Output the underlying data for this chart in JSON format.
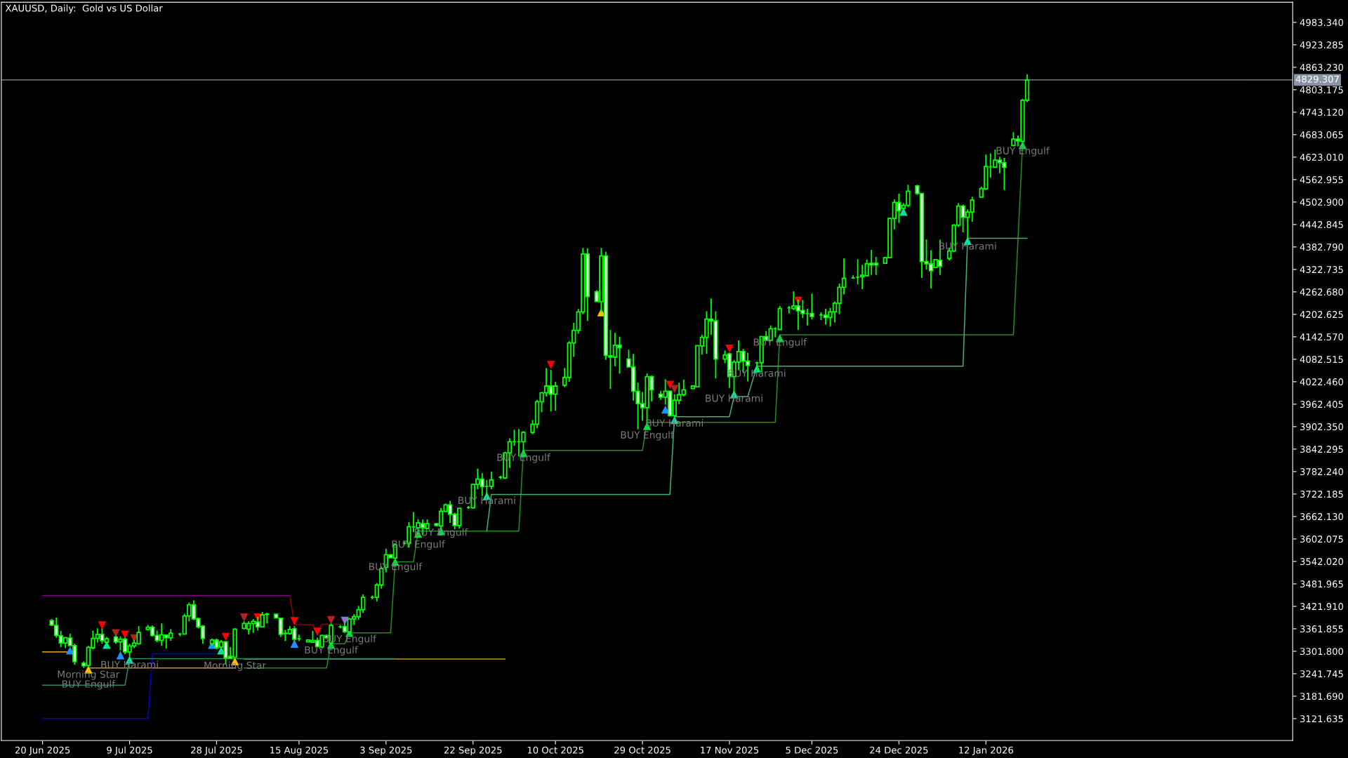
{
  "chart_data": {
    "type": "candlestick",
    "title": "XAUUSD, Daily:  Gold vs US Dollar",
    "x": [
      "2025-06-22",
      "2025-06-23",
      "2025-06-24",
      "2025-06-25",
      "2025-06-26",
      "2025-06-27",
      "2025-06-29",
      "2025-06-30",
      "2025-07-01",
      "2025-07-02",
      "2025-07-03",
      "2025-07-04",
      "2025-07-06",
      "2025-07-07",
      "2025-07-08",
      "2025-07-09",
      "2025-07-10",
      "2025-07-11",
      "2025-07-13",
      "2025-07-14",
      "2025-07-15",
      "2025-07-16",
      "2025-07-17",
      "2025-07-18",
      "2025-07-20",
      "2025-07-21",
      "2025-07-22",
      "2025-07-23",
      "2025-07-24",
      "2025-07-25",
      "2025-07-27",
      "2025-07-28",
      "2025-07-29",
      "2025-07-30",
      "2025-07-31",
      "2025-08-01",
      "2025-08-03",
      "2025-08-04",
      "2025-08-05",
      "2025-08-06",
      "2025-08-07",
      "2025-08-08",
      "2025-08-10",
      "2025-08-11",
      "2025-08-12",
      "2025-08-13",
      "2025-08-14",
      "2025-08-15",
      "2025-08-17",
      "2025-08-18",
      "2025-08-19",
      "2025-08-20",
      "2025-08-21",
      "2025-08-22",
      "2025-08-24",
      "2025-08-25",
      "2025-08-26",
      "2025-08-27",
      "2025-08-28",
      "2025-08-29",
      "2025-08-31",
      "2025-09-01",
      "2025-09-02",
      "2025-09-03",
      "2025-09-04",
      "2025-09-05",
      "2025-09-07",
      "2025-09-08",
      "2025-09-09",
      "2025-09-10",
      "2025-09-11",
      "2025-09-12",
      "2025-09-14",
      "2025-09-15",
      "2025-09-16",
      "2025-09-17",
      "2025-09-18",
      "2025-09-19",
      "2025-09-21",
      "2025-09-22",
      "2025-09-23",
      "2025-09-24",
      "2025-09-25",
      "2025-09-26",
      "2025-09-28",
      "2025-09-29",
      "2025-09-30",
      "2025-10-01",
      "2025-10-02",
      "2025-10-03",
      "2025-10-05",
      "2025-10-06",
      "2025-10-07",
      "2025-10-08",
      "2025-10-09",
      "2025-10-10",
      "2025-10-12",
      "2025-10-13",
      "2025-10-14",
      "2025-10-15",
      "2025-10-16",
      "2025-10-17",
      "2025-10-19",
      "2025-10-20",
      "2025-10-21",
      "2025-10-22",
      "2025-10-23",
      "2025-10-24",
      "2025-10-26",
      "2025-10-27",
      "2025-10-28",
      "2025-10-29",
      "2025-10-30",
      "2025-10-31",
      "2025-11-02",
      "2025-11-03",
      "2025-11-04",
      "2025-11-05",
      "2025-11-06",
      "2025-11-07",
      "2025-11-09",
      "2025-11-10",
      "2025-11-11",
      "2025-11-12",
      "2025-11-13",
      "2025-11-14",
      "2025-11-16",
      "2025-11-17",
      "2025-11-18",
      "2025-11-19",
      "2025-11-20",
      "2025-11-21",
      "2025-11-23",
      "2025-11-24",
      "2025-11-25",
      "2025-11-26",
      "2025-11-27",
      "2025-11-28",
      "2025-11-30",
      "2025-12-01",
      "2025-12-02",
      "2025-12-03",
      "2025-12-04",
      "2025-12-05",
      "2025-12-07",
      "2025-12-08",
      "2025-12-09",
      "2025-12-10",
      "2025-12-11",
      "2025-12-12",
      "2025-12-14",
      "2025-12-15",
      "2025-12-16",
      "2025-12-17",
      "2025-12-18",
      "2025-12-19",
      "2025-12-21",
      "2025-12-22",
      "2025-12-23",
      "2025-12-24",
      "2025-12-25",
      "2025-12-26",
      "2025-12-28",
      "2025-12-29",
      "2025-12-30",
      "2025-12-31",
      "2026-01-01",
      "2026-01-02",
      "2026-01-04",
      "2026-01-05",
      "2026-01-06",
      "2026-01-07",
      "2026-01-08",
      "2026-01-09",
      "2026-01-11",
      "2026-01-12",
      "2026-01-13",
      "2026-01-14",
      "2026-01-15",
      "2026-01-16",
      "2026-01-18",
      "2026-01-19",
      "2026-01-20",
      "2026-01-21"
    ],
    "ohlc": [
      [
        3384,
        3388,
        3369,
        3372
      ],
      [
        3371,
        3392,
        3338,
        3344
      ],
      [
        3343,
        3356,
        3313,
        3324
      ],
      [
        3324,
        3340,
        3310,
        3338
      ],
      [
        3337,
        3349,
        3316,
        3317
      ],
      [
        3317,
        3322,
        3266,
        3274
      ],
      [
        3270,
        3275,
        3257,
        3263
      ],
      [
        3264,
        3316,
        3258,
        3312
      ],
      [
        3311,
        3357,
        3307,
        3336
      ],
      [
        3336,
        3363,
        3325,
        3347
      ],
      [
        3347,
        3363,
        3322,
        3330
      ],
      [
        3326,
        3340,
        3316,
        3335
      ],
      [
        3340,
        3344,
        3322,
        3327
      ],
      [
        3327,
        3342,
        3304,
        3334
      ],
      [
        3334,
        3338,
        3294,
        3300
      ],
      [
        3300,
        3322,
        3288,
        3316
      ],
      [
        3316,
        3332,
        3310,
        3324
      ],
      [
        3322,
        3369,
        3319,
        3352
      ],
      [
        3360,
        3372,
        3357,
        3366
      ],
      [
        3366,
        3371,
        3341,
        3344
      ],
      [
        3344,
        3357,
        3326,
        3331
      ],
      [
        3331,
        3376,
        3316,
        3346
      ],
      [
        3345,
        3347,
        3309,
        3338
      ],
      [
        3338,
        3361,
        3330,
        3350
      ],
      [
        3348,
        3351,
        3342,
        3348
      ],
      [
        3348,
        3402,
        3346,
        3396
      ],
      [
        3396,
        3432,
        3382,
        3426
      ],
      [
        3426,
        3438,
        3385,
        3388
      ],
      [
        3389,
        3392,
        3363,
        3367
      ],
      [
        3369,
        3372,
        3322,
        3336
      ],
      [
        3322,
        3336,
        3316,
        3332
      ],
      [
        3332,
        3336,
        3307,
        3311
      ],
      [
        3313,
        3332,
        3310,
        3327
      ],
      [
        3327,
        3329,
        3266,
        3284
      ],
      [
        3288,
        3313,
        3282,
        3283
      ],
      [
        3286,
        3363,
        3285,
        3361
      ],
      [
        3363,
        3382,
        3360,
        3376
      ],
      [
        3361,
        3382,
        3347,
        3376
      ],
      [
        3376,
        3388,
        3351,
        3382
      ],
      [
        3380,
        3394,
        3357,
        3367
      ],
      [
        3367,
        3407,
        3366,
        3399
      ],
      [
        3401,
        3405,
        3376,
        3400
      ],
      [
        3401,
        3403,
        3390,
        3391
      ],
      [
        3390,
        3391,
        3340,
        3347
      ],
      [
        3350,
        3359,
        3329,
        3349
      ],
      [
        3349,
        3369,
        3346,
        3360
      ],
      [
        3362,
        3369,
        3329,
        3334
      ],
      [
        3335,
        3346,
        3329,
        3335
      ],
      [
        3327,
        3334,
        3326,
        3332
      ],
      [
        3326,
        3356,
        3324,
        3331
      ],
      [
        3331,
        3338,
        3313,
        3314
      ],
      [
        3313,
        3346,
        3311,
        3344
      ],
      [
        3344,
        3346,
        3336,
        3338
      ],
      [
        3324,
        3376,
        3322,
        3371
      ],
      [
        3367,
        3372,
        3363,
        3367
      ],
      [
        3368,
        3376,
        3351,
        3354
      ],
      [
        3354,
        3391,
        3349,
        3388
      ],
      [
        3388,
        3401,
        3372,
        3394
      ],
      [
        3394,
        3423,
        3386,
        3413
      ],
      [
        3413,
        3454,
        3404,
        3446
      ],
      [
        3446,
        3451,
        3441,
        3446
      ],
      [
        3446,
        3484,
        3435,
        3479
      ],
      [
        3479,
        3528,
        3469,
        3523
      ],
      [
        3526,
        3576,
        3513,
        3560
      ],
      [
        3560,
        3561,
        3551,
        3552
      ],
      [
        3551,
        3590,
        3541,
        3586
      ],
      [
        3591,
        3597,
        3586,
        3591
      ],
      [
        3590,
        3647,
        3579,
        3635
      ],
      [
        3634,
        3674,
        3620,
        3634
      ],
      [
        3632,
        3655,
        3613,
        3645
      ],
      [
        3643,
        3654,
        3613,
        3632
      ],
      [
        3630,
        3654,
        3628,
        3643
      ],
      [
        3643,
        3644,
        3637,
        3638
      ],
      [
        3637,
        3685,
        3628,
        3676
      ],
      [
        3676,
        3697,
        3674,
        3693
      ],
      [
        3693,
        3704,
        3645,
        3668
      ],
      [
        3668,
        3672,
        3628,
        3638
      ],
      [
        3638,
        3685,
        3630,
        3684
      ],
      [
        3686,
        3690,
        3682,
        3686
      ],
      [
        3685,
        3749,
        3683,
        3748
      ],
      [
        3748,
        3790,
        3735,
        3762
      ],
      [
        3762,
        3778,
        3717,
        3742
      ],
      [
        3743,
        3760,
        3717,
        3743
      ],
      [
        3743,
        3782,
        3735,
        3760
      ],
      [
        3767,
        3771,
        3762,
        3767
      ],
      [
        3765,
        3835,
        3762,
        3832
      ],
      [
        3832,
        3871,
        3792,
        3862
      ],
      [
        3862,
        3894,
        3851,
        3862
      ],
      [
        3862,
        3896,
        3823,
        3862
      ],
      [
        3862,
        3891,
        3835,
        3887
      ],
      [
        3887,
        3920,
        3882,
        3909
      ],
      [
        3909,
        3974,
        3898,
        3969
      ],
      [
        3969,
        3995,
        3941,
        3993
      ],
      [
        3993,
        4059,
        3983,
        4011
      ],
      [
        4011,
        4054,
        3943,
        3989
      ],
      [
        3989,
        4022,
        3945,
        4011
      ],
      [
        4013,
        4059,
        4008,
        4034
      ],
      [
        4034,
        4131,
        4022,
        4126
      ],
      [
        4126,
        4180,
        4089,
        4160
      ],
      [
        4160,
        4217,
        4151,
        4209
      ],
      [
        4209,
        4380,
        4203,
        4364
      ],
      [
        4364,
        4379,
        4185,
        4250
      ],
      [
        4263,
        4267,
        4236,
        4237
      ],
      [
        4237,
        4380,
        4208,
        4359
      ],
      [
        4359,
        4370,
        4081,
        4093
      ],
      [
        4092,
        4161,
        4003,
        4088
      ],
      [
        4088,
        4153,
        4064,
        4120
      ],
      [
        4120,
        4143,
        4044,
        4113
      ],
      [
        4083,
        4108,
        4061,
        4062
      ],
      [
        4062,
        4097,
        3972,
        3997
      ],
      [
        3997,
        4020,
        3895,
        3964
      ],
      [
        3964,
        3995,
        3918,
        3953
      ],
      [
        3953,
        4045,
        3914,
        4036
      ],
      [
        4036,
        4039,
        3970,
        4001
      ],
      [
        3989,
        3998,
        3974,
        3981
      ],
      [
        3981,
        4029,
        3961,
        3997
      ],
      [
        3997,
        3999,
        3929,
        3932
      ],
      [
        3932,
        3989,
        3929,
        3973
      ],
      [
        3973,
        4020,
        3962,
        3988
      ],
      [
        3988,
        4028,
        3983,
        4001
      ],
      [
        4004,
        4013,
        4003,
        4011
      ],
      [
        4009,
        4120,
        4008,
        4119
      ],
      [
        4118,
        4148,
        4095,
        4141
      ],
      [
        4141,
        4211,
        4097,
        4190
      ],
      [
        4190,
        4245,
        4148,
        4185
      ],
      [
        4185,
        4211,
        4031,
        4083
      ],
      [
        4083,
        4106,
        4072,
        4094
      ],
      [
        4097,
        4100,
        4006,
        4036
      ],
      [
        4036,
        4081,
        3993,
        4075
      ],
      [
        4075,
        4133,
        4053,
        4103
      ],
      [
        4103,
        4110,
        4046,
        4078
      ],
      [
        4078,
        4100,
        4023,
        4066
      ],
      [
        4073,
        4076,
        4048,
        4073
      ],
      [
        4073,
        4145,
        4048,
        4143
      ],
      [
        4143,
        4158,
        4131,
        4133
      ],
      [
        4133,
        4173,
        4130,
        4164
      ],
      [
        4164,
        4168,
        4141,
        4164
      ],
      [
        4162,
        4225,
        4161,
        4218
      ],
      [
        4220,
        4225,
        4205,
        4220
      ],
      [
        4218,
        4264,
        4214,
        4225
      ],
      [
        4225,
        4242,
        4161,
        4212
      ],
      [
        4213,
        4241,
        4193,
        4205
      ],
      [
        4205,
        4218,
        4173,
        4205
      ],
      [
        4205,
        4258,
        4189,
        4197
      ],
      [
        4201,
        4208,
        4187,
        4201
      ],
      [
        4200,
        4218,
        4175,
        4194
      ],
      [
        4194,
        4220,
        4170,
        4209
      ],
      [
        4209,
        4237,
        4181,
        4232
      ],
      [
        4232,
        4285,
        4203,
        4275
      ],
      [
        4275,
        4352,
        4256,
        4299
      ],
      [
        4300,
        4307,
        4299,
        4300
      ],
      [
        4302,
        4350,
        4283,
        4302
      ],
      [
        4303,
        4335,
        4270,
        4307
      ],
      [
        4306,
        4349,
        4304,
        4338
      ],
      [
        4339,
        4375,
        4308,
        4335
      ],
      [
        4339,
        4356,
        4308,
        4335
      ],
      [
        4339,
        4356,
        4338,
        4354
      ],
      [
        4354,
        4461,
        4353,
        4459
      ],
      [
        4459,
        4510,
        4430,
        4502
      ],
      [
        4502,
        4525,
        4447,
        4480
      ],
      [
        4486,
        4500,
        4483,
        4494
      ],
      [
        4494,
        4549,
        4489,
        4532
      ],
      [
        4546,
        4549,
        4522,
        4526
      ],
      [
        4526,
        4526,
        4300,
        4344
      ],
      [
        4344,
        4403,
        4322,
        4338
      ],
      [
        4338,
        4374,
        4272,
        4319
      ],
      [
        4328,
        4350,
        4327,
        4349
      ],
      [
        4347,
        4402,
        4308,
        4331
      ],
      [
        4352,
        4381,
        4347,
        4372
      ],
      [
        4372,
        4444,
        4369,
        4441
      ],
      [
        4441,
        4500,
        4436,
        4492
      ],
      [
        4492,
        4496,
        4422,
        4462
      ],
      [
        4462,
        4483,
        4405,
        4476
      ],
      [
        4476,
        4517,
        4450,
        4508
      ],
      [
        4516,
        4544,
        4514,
        4539
      ],
      [
        4538,
        4630,
        4535,
        4598
      ],
      [
        4597,
        4633,
        4568,
        4597
      ],
      [
        4596,
        4643,
        4594,
        4615
      ],
      [
        4615,
        4624,
        4580,
        4608
      ],
      [
        4608,
        4621,
        4535,
        4596
      ],
      [
        4654,
        4690,
        4652,
        4671
      ],
      [
        4671,
        4681,
        4652,
        4666
      ],
      [
        4665,
        4779,
        4663,
        4775
      ],
      [
        4775,
        4844,
        4770,
        4829
      ]
    ],
    "xlim": [
      "2025-06-11",
      "2026-03-20"
    ],
    "ylim": [
      3063,
      5037
    ],
    "yticks": [
      {
        "value": 3121.635,
        "label": "3121.635"
      },
      {
        "value": 3181.69,
        "label": "3181.690"
      },
      {
        "value": 3241.745,
        "label": "3241.745"
      },
      {
        "value": 3301.8,
        "label": "3301.800"
      },
      {
        "value": 3361.855,
        "label": "3361.855"
      },
      {
        "value": 3421.91,
        "label": "3421.910"
      },
      {
        "value": 3481.965,
        "label": "3481.965"
      },
      {
        "value": 3542.02,
        "label": "3542.020"
      },
      {
        "value": 3602.075,
        "label": "3602.075"
      },
      {
        "value": 3662.13,
        "label": "3662.130"
      },
      {
        "value": 3722.185,
        "label": "3722.185"
      },
      {
        "value": 3782.24,
        "label": "3782.240"
      },
      {
        "value": 3842.295,
        "label": "3842.295"
      },
      {
        "value": 3902.35,
        "label": "3902.350"
      },
      {
        "value": 3962.405,
        "label": "3962.405"
      },
      {
        "value": 4022.46,
        "label": "4022.460"
      },
      {
        "value": 4082.515,
        "label": "4082.515"
      },
      {
        "value": 4142.57,
        "label": "4142.570"
      },
      {
        "value": 4202.625,
        "label": "4202.625"
      },
      {
        "value": 4262.68,
        "label": "4262.680"
      },
      {
        "value": 4322.735,
        "label": "4322.735"
      },
      {
        "value": 4382.79,
        "label": "4382.790"
      },
      {
        "value": 4442.845,
        "label": "4442.845"
      },
      {
        "value": 4502.9,
        "label": "4502.900"
      },
      {
        "value": 4562.955,
        "label": "4562.955"
      },
      {
        "value": 4623.01,
        "label": "4623.010"
      },
      {
        "value": 4683.065,
        "label": "4683.065"
      },
      {
        "value": 4743.12,
        "label": "4743.120"
      },
      {
        "value": 4803.175,
        "label": "4803.175"
      },
      {
        "value": 4863.23,
        "label": "4863.230"
      },
      {
        "value": 4923.285,
        "label": "4923.285"
      },
      {
        "value": 4983.34,
        "label": "4983.340"
      }
    ],
    "xticks": [
      {
        "value": "2025-06-20",
        "label": "20 Jun 2025"
      },
      {
        "value": "2025-07-09",
        "label": "9 Jul 2025"
      },
      {
        "value": "2025-07-28",
        "label": "28 Jul 2025"
      },
      {
        "value": "2025-08-15",
        "label": "15 Aug 2025"
      },
      {
        "value": "2025-09-03",
        "label": "3 Sep 2025"
      },
      {
        "value": "2025-09-22",
        "label": "22 Sep 2025"
      },
      {
        "value": "2025-10-10",
        "label": "10 Oct 2025"
      },
      {
        "value": "2025-10-29",
        "label": "29 Oct 2025"
      },
      {
        "value": "2025-11-17",
        "label": "17 Nov 2025"
      },
      {
        "value": "2025-12-05",
        "label": "5 Dec 2025"
      },
      {
        "value": "2025-12-24",
        "label": "24 Dec 2025"
      },
      {
        "value": "2026-01-12",
        "label": "12 Jan 2026"
      }
    ],
    "ref_lines": [
      {
        "axis": "y",
        "value": 4829.307,
        "label": "4829.307",
        "color": "#8a94a6"
      }
    ],
    "series": [
      {
        "type": "line",
        "color": "#8b008b",
        "x": [
          "2025-06-20",
          "2025-08-13"
        ],
        "values": [
          3451,
          3451
        ]
      },
      {
        "type": "line",
        "color": "#8b0000",
        "x": [
          "2025-08-13",
          "2025-08-14",
          "2025-08-18",
          "2025-08-19",
          "2025-08-20",
          "2025-08-25"
        ],
        "values": [
          3451,
          3373,
          3373,
          3354,
          3374,
          3374
        ]
      },
      {
        "type": "line",
        "color": "#c8961e",
        "x": [
          "2025-06-20",
          "2025-06-26"
        ],
        "values": [
          3300,
          3300
        ]
      },
      {
        "type": "line",
        "color": "#c8961e",
        "x": [
          "2025-06-30",
          "2025-08-01"
        ],
        "values": [
          3257,
          3257
        ]
      },
      {
        "type": "line",
        "color": "#c8961e",
        "x": [
          "2025-08-03",
          "2025-09-29"
        ],
        "values": [
          3281,
          3281
        ]
      },
      {
        "type": "line",
        "color": "#0000cd",
        "x": [
          "2025-06-20",
          "2025-07-13",
          "2025-07-14",
          "2025-07-28"
        ],
        "values": [
          3122,
          3122,
          3295,
          3295
        ]
      },
      {
        "type": "line",
        "color": "#2e8b57",
        "x": [
          "2025-06-20",
          "2025-07-08",
          "2025-07-09",
          "2025-09-05"
        ],
        "values": [
          3211,
          3211,
          3282,
          3282
        ]
      },
      {
        "type": "line",
        "color": "#228b22",
        "x": [
          "2025-08-03",
          "2025-08-21",
          "2025-08-22",
          "2025-08-25",
          "2025-08-26",
          "2025-09-04",
          "2025-09-05",
          "2025-09-09",
          "2025-09-10",
          "2025-10-02",
          "2025-10-03",
          "2025-10-29",
          "2025-10-30",
          "2025-11-27",
          "2025-11-28",
          "2026-01-18",
          "2026-01-20"
        ],
        "values": [
          3257,
          3257,
          3322,
          3322,
          3351,
          3351,
          3541,
          3541,
          3623,
          3623,
          3839,
          3839,
          3914,
          3914,
          4148,
          4148,
          4656
        ]
      },
      {
        "type": "line",
        "color": "#3cb371",
        "x": [
          "2025-09-25",
          "2025-09-26",
          "2025-11-04",
          "2025-11-05",
          "2025-11-17",
          "2025-11-18",
          "2025-11-21",
          "2025-11-23",
          "2026-01-07",
          "2026-01-08",
          "2026-01-21"
        ],
        "values": [
          3623,
          3721,
          3721,
          3929,
          3929,
          3983,
          3983,
          4064,
          4064,
          4406,
          4406
        ]
      },
      {
        "type": "scatter",
        "marker": "triangle",
        "color": "#ff0000",
        "x": [
          "2025-07-03",
          "2025-07-08",
          "2025-07-30",
          "2025-08-06",
          "2025-08-14",
          "2025-08-19",
          "2025-10-09",
          "2025-11-04",
          "2025-11-17",
          "2025-12-02"
        ],
        "values": [
          3371,
          3346,
          3340,
          3392,
          3382,
          3354,
          4067,
          4014,
          4111,
          4239
        ]
      },
      {
        "type": "scatter",
        "marker": "triangle",
        "color": "#b22222",
        "x": [
          "2025-07-06",
          "2025-07-10",
          "2025-08-03",
          "2025-08-22",
          "2025-11-05"
        ],
        "values": [
          3350,
          3336,
          3392,
          3385,
          4003
        ]
      },
      {
        "type": "scatter",
        "marker": "triangle",
        "color": "#9370db",
        "x": [
          "2025-08-25"
        ],
        "values": [
          3383
        ]
      },
      {
        "type": "scatter",
        "marker": "triangle",
        "color": "#1e90ff",
        "x": [
          "2025-06-26",
          "2025-07-07",
          "2025-07-27",
          "2025-08-14",
          "2025-11-03"
        ],
        "values": [
          3304,
          3291,
          3319,
          3322,
          3948
        ]
      },
      {
        "type": "scatter",
        "marker": "triangle",
        "color": "#00e5a0",
        "x": [
          "2025-07-04",
          "2025-07-09",
          "2025-07-29",
          "2025-09-25",
          "2025-11-05",
          "2025-11-18",
          "2025-11-23",
          "2025-12-25",
          "2026-01-08"
        ],
        "values": [
          3319,
          3279,
          3304,
          3717,
          3920,
          3989,
          4058,
          4477,
          4399
        ]
      },
      {
        "type": "scatter",
        "marker": "triangle",
        "color": "#ffc000",
        "x": [
          "2025-06-30",
          "2025-08-01",
          "2025-10-20"
        ],
        "values": [
          3253,
          3275,
          4208
        ]
      },
      {
        "type": "scatter",
        "marker": "triangle",
        "color": "#00e040",
        "x": [
          "2025-08-22",
          "2025-08-26",
          "2025-09-05",
          "2025-09-10",
          "2025-09-15",
          "2025-10-03",
          "2025-10-30",
          "2025-11-28",
          "2026-01-20"
        ],
        "values": [
          3319,
          3351,
          3541,
          3616,
          3623,
          3832,
          3904,
          4139,
          4655
        ]
      }
    ],
    "annotations": [
      {
        "text": "Morning Star",
        "x": "2025-06-30",
        "y": 3238
      },
      {
        "text": "BUY Engulf",
        "x": "2025-06-30",
        "y": 3212
      },
      {
        "text": "BUY Harami",
        "x": "2025-07-09",
        "y": 3264
      },
      {
        "text": "Morning Star",
        "x": "2025-08-01",
        "y": 3262
      },
      {
        "text": "BUY Engulf",
        "x": "2025-08-22",
        "y": 3303
      },
      {
        "text": "BUY Engulf",
        "x": "2025-08-26",
        "y": 3333
      },
      {
        "text": "BUY Engulf",
        "x": "2025-09-05",
        "y": 3526
      },
      {
        "text": "BUY Engulf",
        "x": "2025-09-10",
        "y": 3586
      },
      {
        "text": "BUY Engulf",
        "x": "2025-09-15",
        "y": 3618
      },
      {
        "text": "BUY Harami",
        "x": "2025-09-25",
        "y": 3703
      },
      {
        "text": "BUY Engulf",
        "x": "2025-10-03",
        "y": 3818
      },
      {
        "text": "BUY Engulf",
        "x": "2025-10-30",
        "y": 3878
      },
      {
        "text": "BUY Harami",
        "x": "2025-11-05",
        "y": 3910
      },
      {
        "text": "BUY Harami",
        "x": "2025-11-18",
        "y": 3976
      },
      {
        "text": "BUY Harami",
        "x": "2025-11-23",
        "y": 4043
      },
      {
        "text": "BUY Engulf",
        "x": "2025-11-28",
        "y": 4126
      },
      {
        "text": "BUY Harami",
        "x": "2026-01-08",
        "y": 4383
      },
      {
        "text": "BUY Engulf",
        "x": "2026-01-20",
        "y": 4638
      }
    ]
  }
}
